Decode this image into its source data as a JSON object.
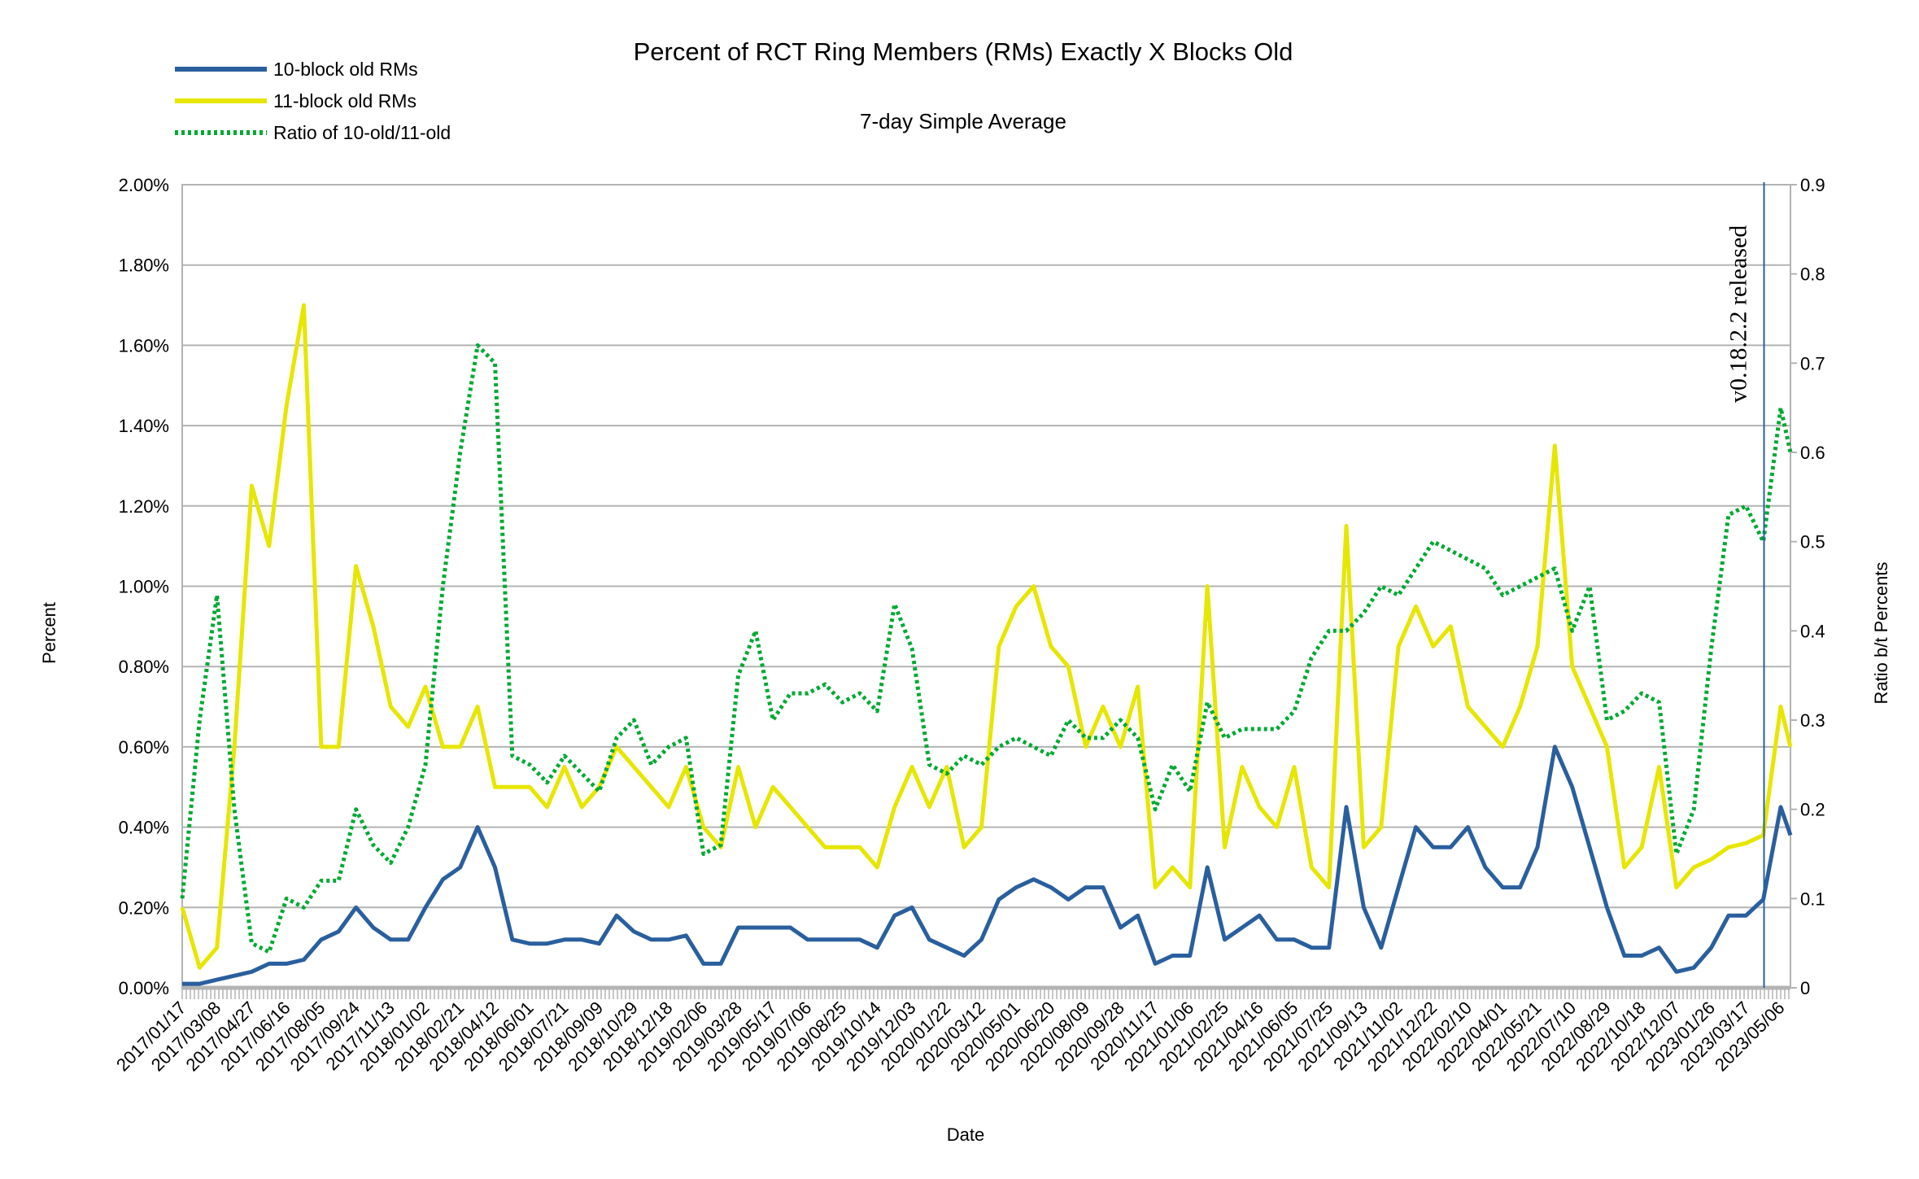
{
  "chart_data": {
    "type": "line",
    "title": "Percent of RCT Ring Members (RMs) Exactly X Blocks Old",
    "subtitle": "7-day Simple Average",
    "xlabel": "Date",
    "ylabel": "Percent",
    "y2label": "Ratio b/t Percents",
    "ylim": [
      0,
      2.0
    ],
    "y2lim": [
      0,
      0.9
    ],
    "yticks": [
      "0.00%",
      "0.20%",
      "0.40%",
      "0.60%",
      "0.80%",
      "1.00%",
      "1.20%",
      "1.40%",
      "1.60%",
      "1.80%",
      "2.00%"
    ],
    "y2ticks": [
      "0",
      "0.1",
      "0.2",
      "0.3",
      "0.4",
      "0.5",
      "0.6",
      "0.7",
      "0.8",
      "0.9"
    ],
    "grid": true,
    "legend_placement": "top-left",
    "xticks": [
      "2017/01/17",
      "2017/03/08",
      "2017/04/27",
      "2017/06/16",
      "2017/08/05",
      "2017/09/24",
      "2017/11/13",
      "2018/01/02",
      "2018/02/21",
      "2018/04/12",
      "2018/06/01",
      "2018/07/21",
      "2018/09/09",
      "2018/10/29",
      "2018/12/18",
      "2019/02/06",
      "2019/03/28",
      "2019/05/17",
      "2019/07/06",
      "2019/08/25",
      "2019/10/14",
      "2019/12/03",
      "2020/01/22",
      "2020/03/12",
      "2020/05/01",
      "2020/06/20",
      "2020/08/09",
      "2020/09/28",
      "2020/11/17",
      "2021/01/06",
      "2021/02/25",
      "2021/04/16",
      "2021/06/05",
      "2021/07/25",
      "2021/09/13",
      "2021/11/02",
      "2021/12/22",
      "2022/02/10",
      "2022/04/01",
      "2022/05/21",
      "2022/07/10",
      "2022/08/29",
      "2022/10/18",
      "2022/12/07",
      "2023/01/26",
      "2023/03/17",
      "2023/05/06"
    ],
    "annotation": {
      "text": "v0.18.2.2 released",
      "date": "2023/04/12",
      "color": "#2a5f9e"
    },
    "x": [
      "2017/01/17",
      "2017/02/11",
      "2017/03/08",
      "2017/04/02",
      "2017/04/27",
      "2017/05/22",
      "2017/06/16",
      "2017/07/11",
      "2017/08/05",
      "2017/08/30",
      "2017/09/24",
      "2017/10/19",
      "2017/11/13",
      "2017/12/08",
      "2018/01/02",
      "2018/01/27",
      "2018/02/21",
      "2018/03/18",
      "2018/04/12",
      "2018/05/07",
      "2018/06/01",
      "2018/06/26",
      "2018/07/21",
      "2018/08/15",
      "2018/09/09",
      "2018/10/04",
      "2018/10/29",
      "2018/11/23",
      "2018/12/18",
      "2019/01/12",
      "2019/02/06",
      "2019/03/03",
      "2019/03/28",
      "2019/04/22",
      "2019/05/17",
      "2019/06/11",
      "2019/07/06",
      "2019/07/31",
      "2019/08/25",
      "2019/09/19",
      "2019/10/14",
      "2019/11/08",
      "2019/12/03",
      "2019/12/28",
      "2020/01/22",
      "2020/02/16",
      "2020/03/12",
      "2020/04/06",
      "2020/05/01",
      "2020/05/26",
      "2020/06/20",
      "2020/07/15",
      "2020/08/09",
      "2020/09/03",
      "2020/09/28",
      "2020/10/23",
      "2020/11/17",
      "2020/12/12",
      "2021/01/06",
      "2021/01/31",
      "2021/02/25",
      "2021/03/22",
      "2021/04/16",
      "2021/05/11",
      "2021/06/05",
      "2021/06/30",
      "2021/07/25",
      "2021/08/19",
      "2021/09/13",
      "2021/10/08",
      "2021/11/02",
      "2021/11/27",
      "2021/12/22",
      "2022/01/16",
      "2022/02/10",
      "2022/03/07",
      "2022/04/01",
      "2022/04/26",
      "2022/05/21",
      "2022/06/15",
      "2022/07/10",
      "2022/08/04",
      "2022/08/29",
      "2022/09/23",
      "2022/10/18",
      "2022/11/12",
      "2022/12/07",
      "2023/01/01",
      "2023/01/26",
      "2023/02/20",
      "2023/03/17",
      "2023/04/11",
      "2023/05/06",
      "2023/05/20"
    ],
    "series": [
      {
        "name": "10-block old RMs",
        "axis": "left",
        "color": "#2a5f9e",
        "style": "solid",
        "values": [
          0.01,
          0.01,
          0.02,
          0.03,
          0.04,
          0.06,
          0.06,
          0.07,
          0.12,
          0.14,
          0.2,
          0.15,
          0.12,
          0.12,
          0.2,
          0.27,
          0.3,
          0.4,
          0.3,
          0.12,
          0.11,
          0.11,
          0.12,
          0.12,
          0.11,
          0.18,
          0.14,
          0.12,
          0.12,
          0.13,
          0.06,
          0.06,
          0.15,
          0.15,
          0.15,
          0.15,
          0.12,
          0.12,
          0.12,
          0.12,
          0.1,
          0.18,
          0.2,
          0.12,
          0.1,
          0.08,
          0.12,
          0.22,
          0.25,
          0.27,
          0.25,
          0.22,
          0.25,
          0.25,
          0.15,
          0.18,
          0.06,
          0.08,
          0.08,
          0.3,
          0.12,
          0.15,
          0.18,
          0.12,
          0.12,
          0.1,
          0.1,
          0.45,
          0.2,
          0.1,
          0.25,
          0.4,
          0.35,
          0.35,
          0.4,
          0.3,
          0.25,
          0.25,
          0.35,
          0.6,
          0.5,
          0.35,
          0.2,
          0.08,
          0.08,
          0.1,
          0.04,
          0.05,
          0.1,
          0.18,
          0.18,
          0.22,
          0.45,
          0.38
        ]
      },
      {
        "name": "11-block old RMs",
        "axis": "left",
        "color": "#e6e600",
        "style": "solid",
        "values": [
          0.2,
          0.05,
          0.1,
          0.6,
          1.25,
          1.1,
          1.45,
          1.7,
          0.6,
          0.6,
          1.05,
          0.9,
          0.7,
          0.65,
          0.75,
          0.6,
          0.6,
          0.7,
          0.5,
          0.5,
          0.5,
          0.45,
          0.55,
          0.45,
          0.5,
          0.6,
          0.55,
          0.5,
          0.45,
          0.55,
          0.4,
          0.35,
          0.55,
          0.4,
          0.5,
          0.45,
          0.4,
          0.35,
          0.35,
          0.35,
          0.3,
          0.45,
          0.55,
          0.45,
          0.55,
          0.35,
          0.4,
          0.85,
          0.95,
          1.0,
          0.85,
          0.8,
          0.6,
          0.7,
          0.6,
          0.75,
          0.25,
          0.3,
          0.25,
          1.0,
          0.35,
          0.55,
          0.45,
          0.4,
          0.55,
          0.3,
          0.25,
          1.15,
          0.35,
          0.4,
          0.85,
          0.95,
          0.85,
          0.9,
          0.7,
          0.65,
          0.6,
          0.7,
          0.85,
          1.35,
          0.8,
          0.7,
          0.6,
          0.3,
          0.35,
          0.55,
          0.25,
          0.3,
          0.32,
          0.35,
          0.36,
          0.38,
          0.7,
          0.6
        ]
      },
      {
        "name": "Ratio of 10-old/11-old",
        "axis": "right",
        "color": "#00a933",
        "style": "dotted",
        "values": [
          0.1,
          0.3,
          0.44,
          0.2,
          0.05,
          0.04,
          0.1,
          0.09,
          0.12,
          0.12,
          0.2,
          0.16,
          0.14,
          0.18,
          0.25,
          0.45,
          0.6,
          0.72,
          0.7,
          0.26,
          0.25,
          0.23,
          0.26,
          0.24,
          0.22,
          0.28,
          0.3,
          0.25,
          0.27,
          0.28,
          0.15,
          0.16,
          0.35,
          0.4,
          0.3,
          0.33,
          0.33,
          0.34,
          0.32,
          0.33,
          0.31,
          0.43,
          0.38,
          0.25,
          0.24,
          0.26,
          0.25,
          0.27,
          0.28,
          0.27,
          0.26,
          0.3,
          0.28,
          0.28,
          0.3,
          0.28,
          0.2,
          0.25,
          0.22,
          0.32,
          0.28,
          0.29,
          0.29,
          0.29,
          0.31,
          0.37,
          0.4,
          0.4,
          0.42,
          0.45,
          0.44,
          0.47,
          0.5,
          0.49,
          0.48,
          0.47,
          0.44,
          0.45,
          0.46,
          0.47,
          0.4,
          0.45,
          0.3,
          0.31,
          0.33,
          0.32,
          0.15,
          0.2,
          0.38,
          0.53,
          0.54,
          0.5,
          0.65,
          0.6
        ]
      }
    ]
  }
}
